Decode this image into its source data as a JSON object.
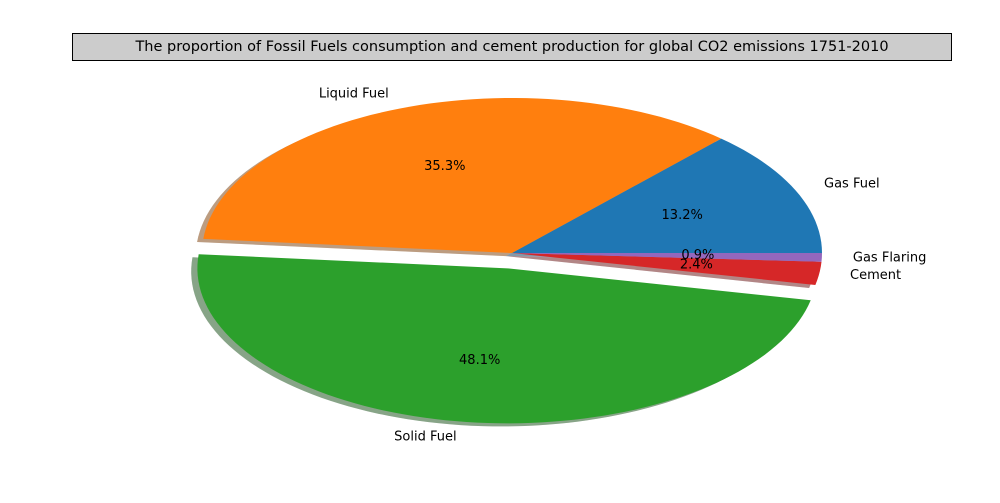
{
  "chart_data": {
    "type": "pie",
    "title": "The proportion of Fossil Fuels consumption and cement production for global CO2 emissions 1751-2010",
    "labels": [
      "Gas Fuel",
      "Liquid Fuel",
      "Solid Fuel",
      "Cement",
      "Gas Flaring"
    ],
    "values": [
      13.2,
      35.3,
      48.1,
      2.4,
      0.9
    ],
    "value_labels": [
      "13.2%",
      "35.3%",
      "48.1%",
      "2.4%",
      "0.9%"
    ],
    "colors": [
      "#1f77b4",
      "#ff7f0e",
      "#2ca02c",
      "#d62728",
      "#9467bd"
    ],
    "exploded": [
      "Solid Fuel"
    ],
    "shadow": true,
    "start_angle_deg": 0,
    "legend": false
  }
}
